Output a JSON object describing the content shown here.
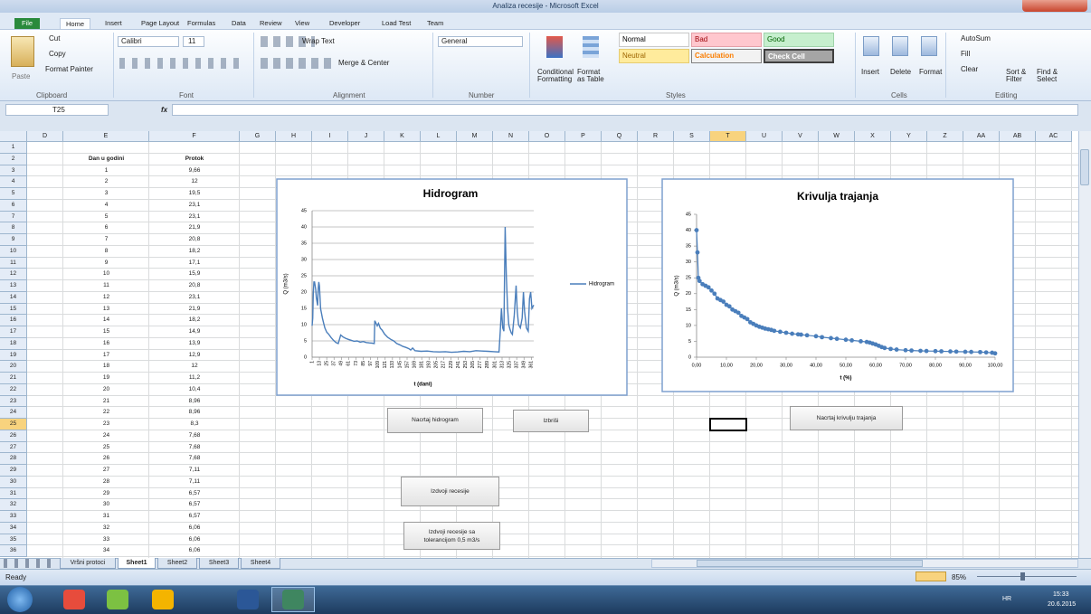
{
  "window": {
    "title": "Analiza recesije - Microsoft Excel"
  },
  "ribbon": {
    "tabs": [
      "File",
      "Home",
      "Insert",
      "Page Layout",
      "Formulas",
      "Data",
      "Review",
      "View",
      "Developer",
      "Load Test",
      "Team"
    ],
    "clipboard": {
      "paste": "Paste",
      "cut": "Cut",
      "copy": "Copy",
      "format_painter": "Format Painter",
      "label": "Clipboard"
    },
    "font": {
      "name": "Calibri",
      "size": "11",
      "label": "Font"
    },
    "alignment": {
      "wrap": "Wrap Text",
      "merge": "Merge & Center",
      "label": "Alignment"
    },
    "number": {
      "format": "General",
      "label": "Number"
    },
    "styles": {
      "conditional": [
        "Conditional",
        "Formatting"
      ],
      "table": [
        "Format",
        "as Table"
      ],
      "cells": [
        "Normal",
        "Bad",
        "Good",
        "Neutral",
        "Calculation",
        "Check Cell"
      ],
      "label": "Styles"
    },
    "cells": {
      "buttons": [
        "Insert",
        "Delete",
        "Format"
      ],
      "label": "Cells"
    },
    "editing": {
      "autosum": "AutoSum",
      "fill": "Fill",
      "clear": "Clear",
      "sort": [
        "Sort &",
        "Filter"
      ],
      "find": [
        "Find &",
        "Select"
      ],
      "label": "Editing"
    }
  },
  "formula_bar": {
    "name_box": "T25",
    "fx": "fx"
  },
  "sheet": {
    "columns": [
      "D",
      "E",
      "F",
      "G",
      "H",
      "I",
      "J",
      "K",
      "L",
      "M",
      "N",
      "O",
      "P",
      "Q",
      "R",
      "S",
      "T",
      "U",
      "V",
      "W",
      "X",
      "Y",
      "Z",
      "AA",
      "AB",
      "AC"
    ],
    "rows": [
      1,
      2,
      3,
      4,
      5,
      6,
      7,
      8,
      9,
      10,
      11,
      12,
      13,
      14,
      15,
      16,
      17,
      18,
      19,
      20,
      21,
      22,
      23,
      24,
      25,
      26,
      27,
      28,
      29,
      30,
      31,
      32,
      33,
      34,
      35,
      36
    ],
    "header": [
      "Dan u godini",
      "Protok"
    ],
    "data": [
      [
        1,
        "9,66"
      ],
      [
        2,
        "12"
      ],
      [
        3,
        "19,5"
      ],
      [
        4,
        "23,1"
      ],
      [
        5,
        "23,1"
      ],
      [
        6,
        "21,9"
      ],
      [
        7,
        "20,8"
      ],
      [
        8,
        "18,2"
      ],
      [
        9,
        "17,1"
      ],
      [
        10,
        "15,9"
      ],
      [
        11,
        "20,8"
      ],
      [
        12,
        "23,1"
      ],
      [
        13,
        "21,9"
      ],
      [
        14,
        "18,2"
      ],
      [
        15,
        "14,9"
      ],
      [
        16,
        "13,9"
      ],
      [
        17,
        "12,9"
      ],
      [
        18,
        "12"
      ],
      [
        19,
        "11,2"
      ],
      [
        20,
        "10,4"
      ],
      [
        21,
        "8,96"
      ],
      [
        22,
        "8,96"
      ],
      [
        23,
        "8,3"
      ],
      [
        24,
        "7,68"
      ],
      [
        25,
        "7,68"
      ],
      [
        26,
        "7,68"
      ],
      [
        27,
        "7,11"
      ],
      [
        28,
        "7,11"
      ],
      [
        29,
        "6,57"
      ],
      [
        30,
        "6,57"
      ],
      [
        31,
        "6,57"
      ],
      [
        32,
        "6,06"
      ],
      [
        33,
        "6,06"
      ],
      [
        34,
        "6,06"
      ]
    ]
  },
  "charts": [
    {
      "type": "line",
      "title": "Hidrogram",
      "ylabel": "Q (m3/s)",
      "xlabel": "t (dani)",
      "ylim": [
        0,
        45
      ],
      "yticks": [
        0,
        5,
        10,
        15,
        20,
        25,
        30,
        35,
        40,
        45
      ],
      "grid": true,
      "xlim": [
        1,
        365
      ],
      "xticks": [
        1,
        13,
        25,
        37,
        49,
        61,
        73,
        85,
        97,
        109,
        121,
        133,
        145,
        157,
        169,
        181,
        193,
        205,
        217,
        229,
        241,
        253,
        265,
        277,
        289,
        301,
        313,
        325,
        337,
        349,
        361
      ],
      "legend": "right",
      "x": [
        1,
        2,
        3,
        4,
        5,
        6,
        7,
        8,
        9,
        10,
        11,
        12,
        13,
        14,
        15,
        16,
        17,
        18,
        19,
        20,
        22,
        25,
        28,
        32,
        36,
        40,
        44,
        48,
        52,
        56,
        60,
        65,
        70,
        75,
        80,
        85,
        90,
        95,
        100,
        103,
        104,
        106,
        108,
        110,
        113,
        116,
        120,
        125,
        130,
        135,
        140,
        145,
        150,
        155,
        160,
        163,
        166,
        170,
        180,
        190,
        200,
        210,
        220,
        230,
        240,
        250,
        260,
        270,
        280,
        290,
        300,
        308,
        310,
        312,
        314,
        316,
        318,
        320,
        322,
        324,
        326,
        328,
        330,
        333,
        336,
        338,
        340,
        343,
        346,
        348,
        350,
        353,
        356,
        358,
        360,
        362,
        365
      ],
      "series": [
        {
          "name": "Hidrogram",
          "color": "#4a7ebb",
          "values": [
            9.66,
            12,
            19.5,
            23.1,
            23.1,
            21.9,
            20.8,
            18.2,
            17.1,
            15.9,
            20.8,
            23.1,
            21.9,
            18.2,
            14.9,
            13.9,
            12.9,
            12,
            11.2,
            10.4,
            8.96,
            7.68,
            7.11,
            6.06,
            5.2,
            4.5,
            4.2,
            6.8,
            6.2,
            5.8,
            5.5,
            5.2,
            4.9,
            5.0,
            4.6,
            4.8,
            4.5,
            4.4,
            4.3,
            4.2,
            11.2,
            10.4,
            9.6,
            10.4,
            8.9,
            8.3,
            7.1,
            6.1,
            5.5,
            5.0,
            4.2,
            3.8,
            3.3,
            3.0,
            2.6,
            2.2,
            2.8,
            2.0,
            1.8,
            1.9,
            1.7,
            1.6,
            1.7,
            1.5,
            1.6,
            1.8,
            1.7,
            2.0,
            1.9,
            1.8,
            1.7,
            1.6,
            8,
            15,
            9,
            8,
            40,
            25,
            15,
            10,
            8.5,
            7.5,
            7,
            13,
            22,
            14,
            10,
            9,
            12,
            20,
            14,
            9,
            8,
            18,
            20,
            15,
            16
          ]
        }
      ]
    },
    {
      "type": "scatter",
      "title": "Krivulja trajanja",
      "ylabel": "Q (m3/s)",
      "xlabel": "t (%)",
      "ylim": [
        0,
        45
      ],
      "yticks": [
        0,
        5,
        10,
        15,
        20,
        25,
        30,
        35,
        40,
        45
      ],
      "grid": false,
      "xlim": [
        0,
        100
      ],
      "xticks": [
        {
          "value": 0,
          "label": "0,00"
        },
        {
          "value": 10,
          "label": "10,00"
        },
        {
          "value": 20,
          "label": "20,00"
        },
        {
          "value": 30,
          "label": "30,00"
        },
        {
          "value": 40,
          "label": "40,00"
        },
        {
          "value": 50,
          "label": "50,00"
        },
        {
          "value": 60,
          "label": "60,00"
        },
        {
          "value": 70,
          "label": "70,00"
        },
        {
          "value": 80,
          "label": "80,00"
        },
        {
          "value": 90,
          "label": "90,00"
        },
        {
          "value": 100,
          "label": "100,00"
        }
      ],
      "color": "#4a7ebb",
      "x": [
        0,
        0.3,
        0.6,
        1,
        2,
        3,
        4,
        5,
        6,
        7,
        8,
        9,
        10,
        11,
        12,
        13,
        14,
        15,
        16,
        17,
        18,
        19,
        20,
        21,
        22,
        23,
        24,
        25,
        26,
        28,
        30,
        32,
        34,
        35,
        37,
        40,
        42,
        45,
        47,
        50,
        52,
        55,
        57,
        58,
        59,
        60,
        61,
        62,
        63,
        65,
        67,
        70,
        72,
        75,
        77,
        80,
        82,
        85,
        87,
        90,
        92,
        95,
        97,
        99,
        100
      ],
      "values": [
        40,
        33,
        25,
        24,
        23,
        22.5,
        22,
        21,
        20,
        18.5,
        18,
        17.5,
        16.5,
        16,
        15,
        14.5,
        14,
        13,
        12.5,
        12,
        11,
        10.5,
        10,
        9.6,
        9.3,
        9,
        8.8,
        8.6,
        8.3,
        8,
        7.7,
        7.4,
        7.2,
        7.1,
        6.9,
        6.6,
        6.3,
        6,
        5.8,
        5.5,
        5.3,
        5,
        4.8,
        4.6,
        4.3,
        4,
        3.6,
        3.2,
        2.9,
        2.6,
        2.4,
        2.2,
        2.1,
        2,
        1.95,
        1.9,
        1.85,
        1.8,
        1.75,
        1.7,
        1.65,
        1.6,
        1.5,
        1.4,
        1.2
      ]
    }
  ],
  "buttons": {
    "draw_hydrograph": "Nacrtaj hidrogram",
    "delete": "Izbriši",
    "draw_duration": "Nacrtaj krivulju trajanja",
    "extract": "Izdvoji recesije",
    "extract_tolerance": [
      "Izdvoji recesije sa",
      "tolerancijom 0,5 m3/s"
    ]
  },
  "sheet_tabs": {
    "names": [
      "Vršni protoci",
      "Sheet1",
      "Sheet2",
      "Sheet3",
      "Sheet4"
    ],
    "active": 1
  },
  "status": {
    "ready": "Ready",
    "zoom": "85%"
  },
  "taskbar": {
    "language": "HR",
    "time": "15:33",
    "date": "20.6.2015"
  }
}
